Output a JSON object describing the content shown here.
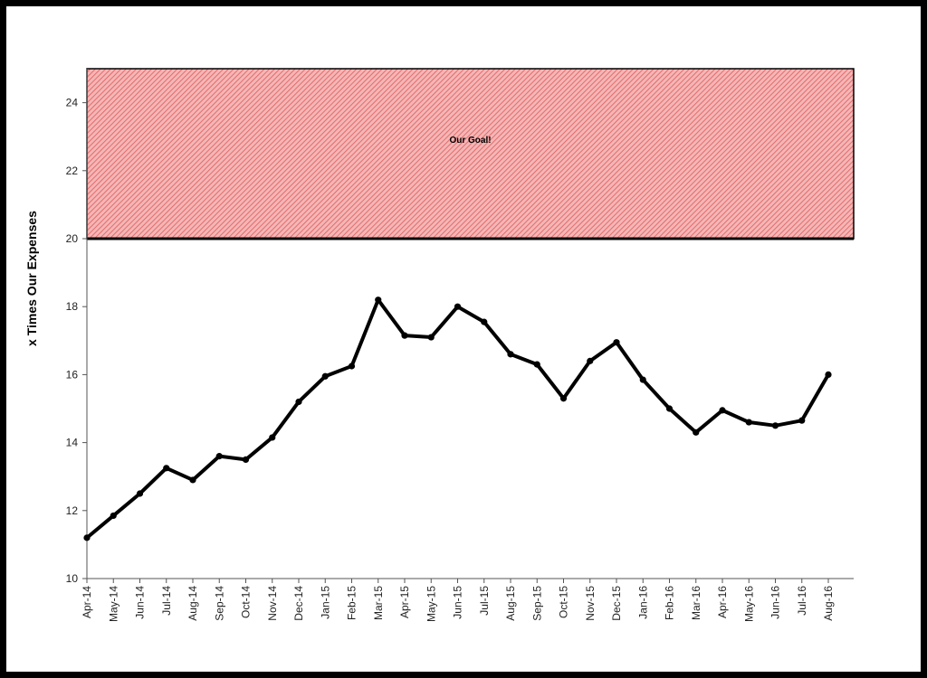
{
  "chart_data": {
    "type": "line",
    "ylabel": "x Times Our Expenses",
    "xlabel": "",
    "title": "",
    "ylim": [
      10,
      25
    ],
    "yticks": [
      10,
      12,
      14,
      16,
      18,
      20,
      22,
      24
    ],
    "grid": false,
    "categories": [
      "Apr-14",
      "May-14",
      "Jun-14",
      "Jul-14",
      "Aug-14",
      "Sep-14",
      "Oct-14",
      "Nov-14",
      "Dec-14",
      "Jan-15",
      "Feb-15",
      "Mar-15",
      "Apr-15",
      "May-15",
      "Jun-15",
      "Jul-15",
      "Aug-15",
      "Sep-15",
      "Oct-15",
      "Nov-15",
      "Dec-15",
      "Jan-16",
      "Feb-16",
      "Mar-16",
      "Apr-16",
      "May-16",
      "Jun-16",
      "Jul-16",
      "Aug-16"
    ],
    "series": [
      {
        "values": [
          11.2,
          11.85,
          12.5,
          13.25,
          12.9,
          13.6,
          13.5,
          14.15,
          15.2,
          15.95,
          16.25,
          18.2,
          17.15,
          17.1,
          18.0,
          17.55,
          16.6,
          16.3,
          15.3,
          16.4,
          16.95,
          15.85,
          15.0,
          14.3,
          14.95,
          14.6,
          14.5,
          14.65,
          16.0
        ],
        "color": "#000000"
      }
    ],
    "goal_band": {
      "label": "Our Goal!",
      "from": 20,
      "to": 25,
      "fill_color": "#f4b6b6",
      "hatch_color": "#e05a5a"
    }
  }
}
